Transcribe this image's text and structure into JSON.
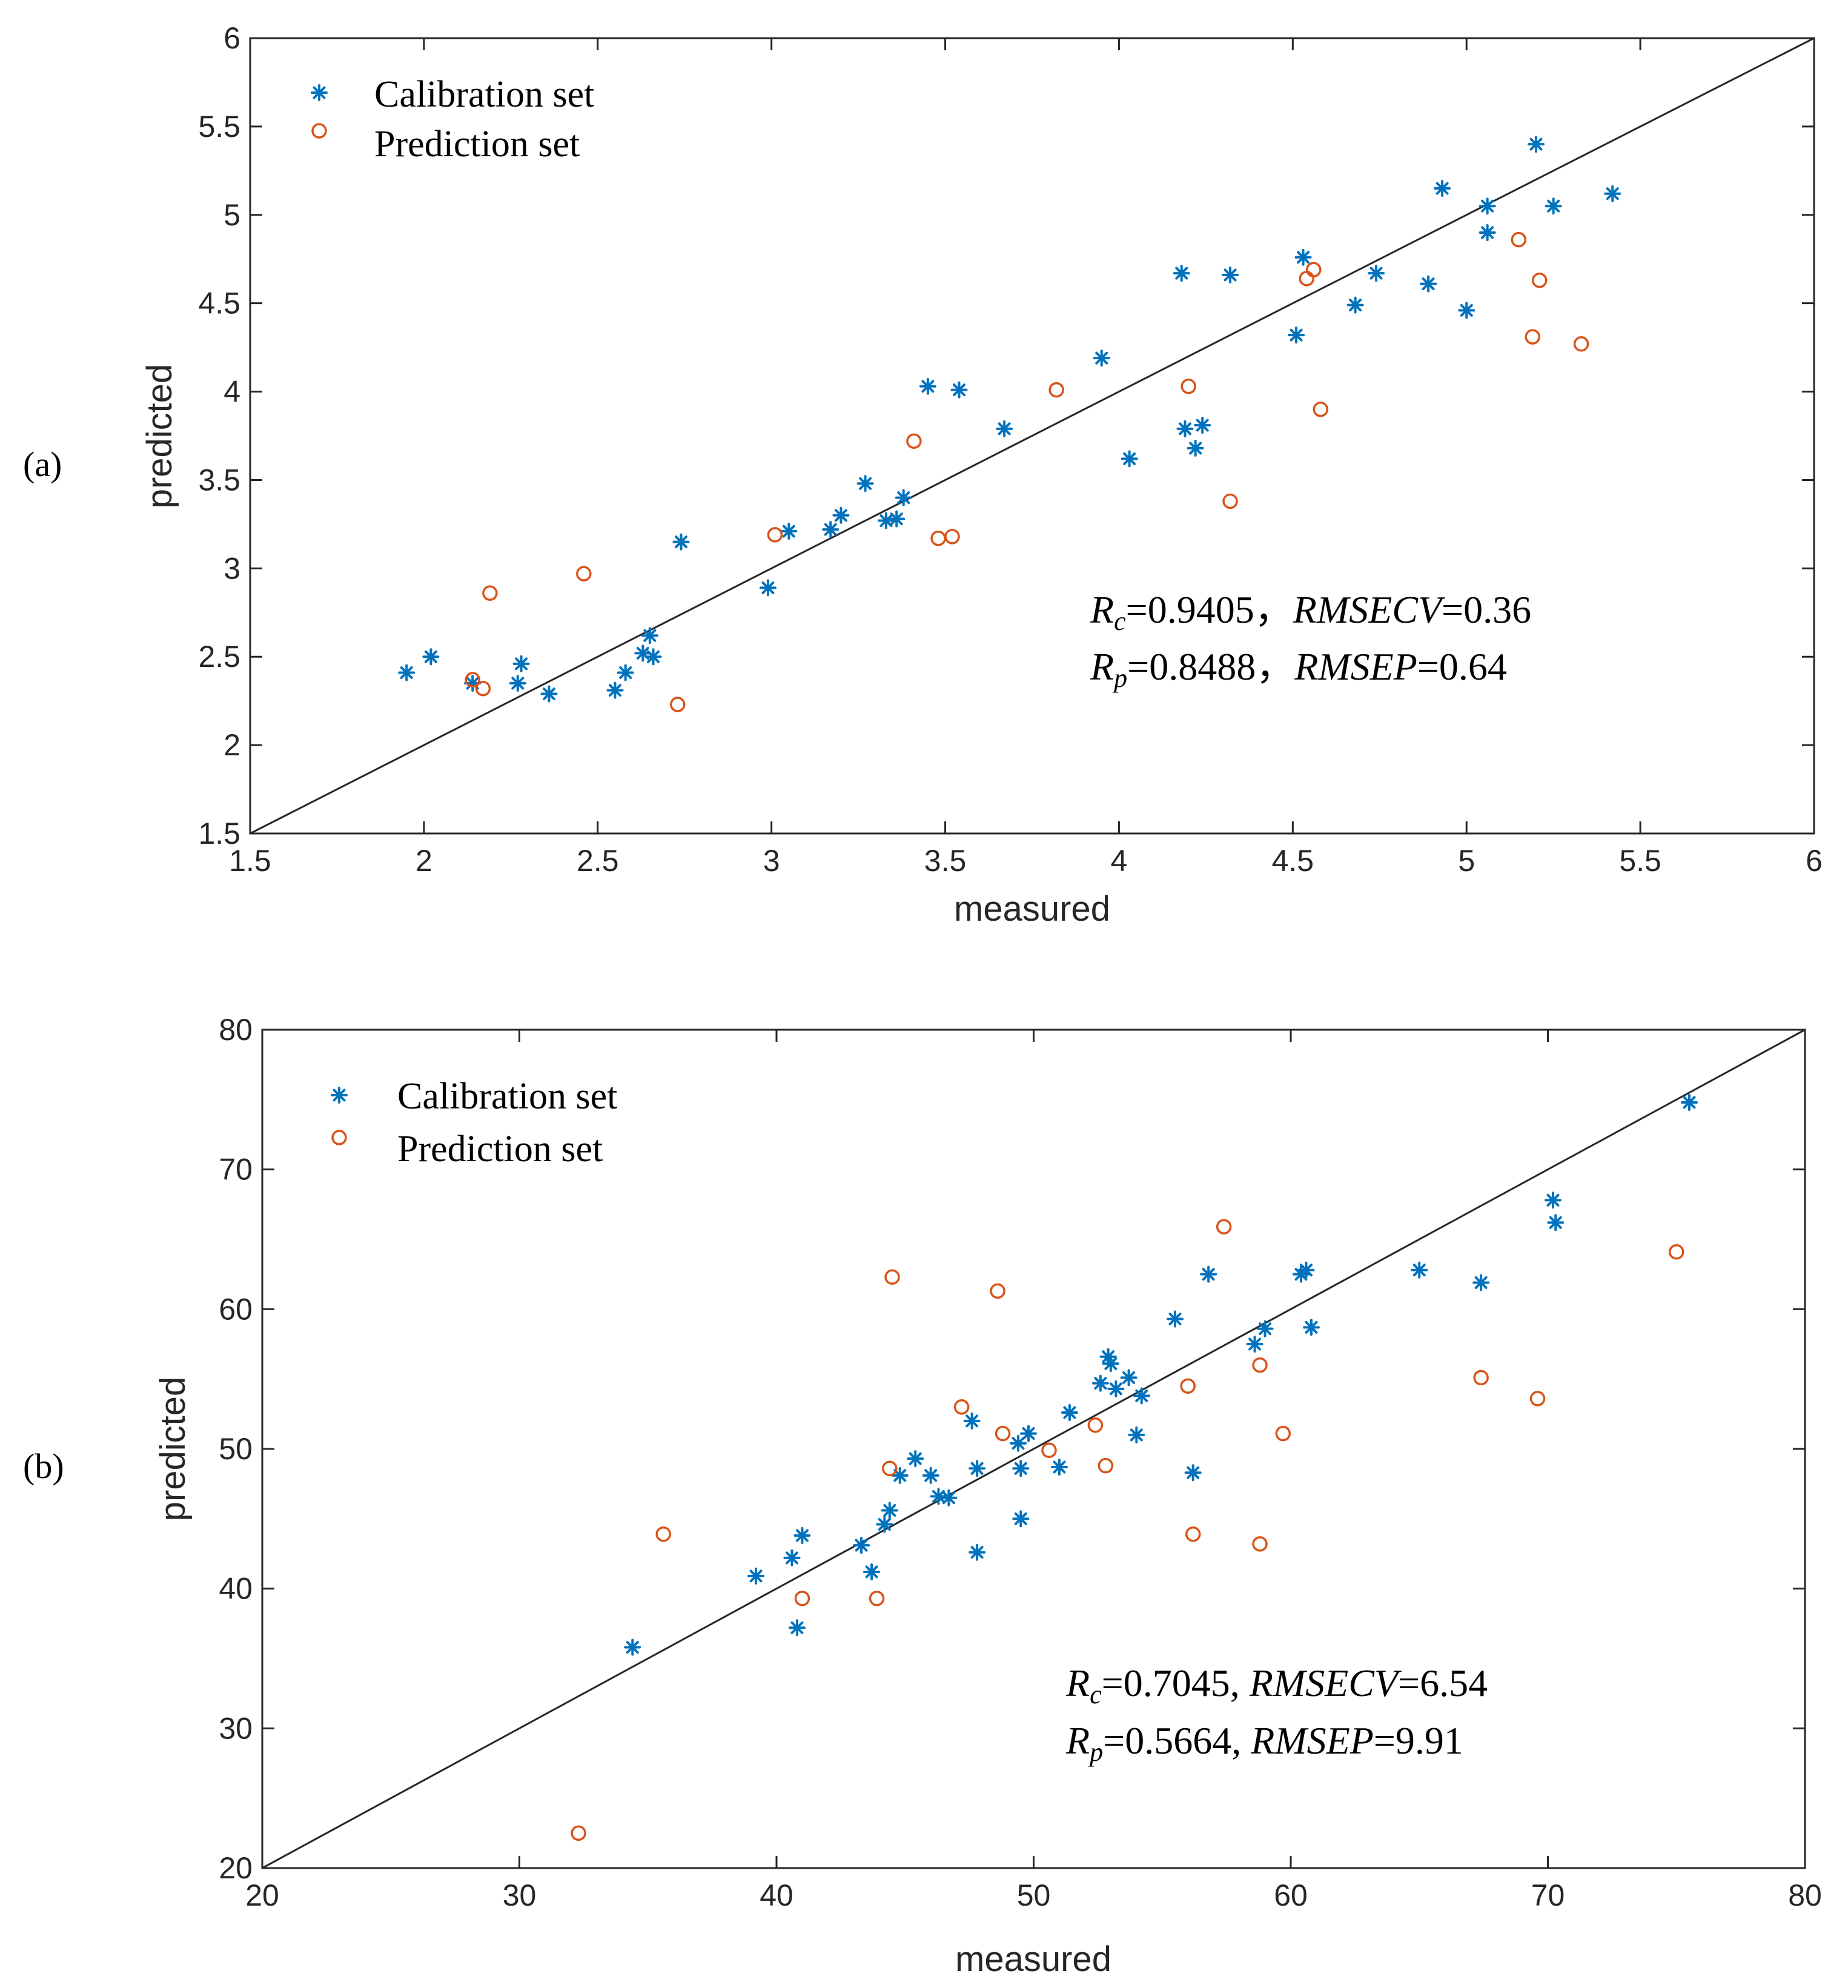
{
  "chart_data": [
    {
      "type": "scatter",
      "panel_label": "(a)",
      "xlabel": "measured",
      "ylabel": "predicted",
      "xlim": [
        1.5,
        6
      ],
      "ylim": [
        1.5,
        6
      ],
      "xticks": [
        "1.5",
        "2",
        "2.5",
        "3",
        "3.5",
        "4",
        "4.5",
        "5",
        "5.5",
        "6"
      ],
      "yticks": [
        "1.5",
        "2",
        "2.5",
        "3",
        "3.5",
        "4",
        "4.5",
        "5",
        "5.5",
        "6"
      ],
      "legend": {
        "position": "top-left",
        "entries": [
          "Calibration set",
          "Prediction set"
        ]
      },
      "reference_line": "y = x",
      "grid": false,
      "annotation": {
        "line1": {
          "rc_sym": "R",
          "rc_sub": "c",
          "rc_val": "=0.9405，",
          "rmse_name": "RMSECV",
          "rmse_val": "=0.36"
        },
        "line2": {
          "rp_sym": "R",
          "rp_sub": "p",
          "rp_val": "=0.8488，",
          "rmse_name": "RMSEP",
          "rmse_val": "=0.64"
        }
      },
      "series": [
        {
          "name": "Calibration set",
          "marker": "asterisk",
          "color": "#0072BD",
          "points": [
            [
              1.95,
              2.41
            ],
            [
              2.02,
              2.5
            ],
            [
              2.14,
              2.35
            ],
            [
              2.27,
              2.35
            ],
            [
              2.28,
              2.46
            ],
            [
              2.36,
              2.29
            ],
            [
              2.55,
              2.31
            ],
            [
              2.58,
              2.41
            ],
            [
              2.63,
              2.52
            ],
            [
              2.65,
              2.62
            ],
            [
              2.66,
              2.5
            ],
            [
              2.74,
              3.15
            ],
            [
              2.99,
              2.89
            ],
            [
              3.05,
              3.21
            ],
            [
              3.17,
              3.22
            ],
            [
              3.2,
              3.3
            ],
            [
              3.27,
              3.48
            ],
            [
              3.33,
              3.27
            ],
            [
              3.36,
              3.28
            ],
            [
              3.38,
              3.4
            ],
            [
              3.45,
              4.03
            ],
            [
              3.54,
              4.01
            ],
            [
              3.67,
              3.79
            ],
            [
              3.95,
              4.19
            ],
            [
              4.03,
              3.62
            ],
            [
              4.18,
              4.67
            ],
            [
              4.19,
              3.79
            ],
            [
              4.22,
              3.68
            ],
            [
              4.24,
              3.81
            ],
            [
              4.32,
              4.66
            ],
            [
              4.51,
              4.32
            ],
            [
              4.53,
              4.76
            ],
            [
              4.68,
              4.49
            ],
            [
              4.74,
              4.67
            ],
            [
              4.89,
              4.61
            ],
            [
              4.93,
              5.15
            ],
            [
              5.0,
              4.46
            ],
            [
              5.06,
              4.9
            ],
            [
              5.06,
              5.05
            ],
            [
              5.2,
              5.4
            ],
            [
              5.25,
              5.05
            ],
            [
              5.42,
              5.12
            ]
          ]
        },
        {
          "name": "Prediction set",
          "marker": "circle",
          "color": "#D95319",
          "points": [
            [
              2.14,
              2.37
            ],
            [
              2.17,
              2.32
            ],
            [
              2.19,
              2.86
            ],
            [
              2.46,
              2.97
            ],
            [
              2.73,
              2.23
            ],
            [
              3.01,
              3.19
            ],
            [
              3.41,
              3.72
            ],
            [
              3.48,
              3.17
            ],
            [
              3.52,
              3.18
            ],
            [
              3.82,
              4.01
            ],
            [
              4.2,
              4.03
            ],
            [
              4.32,
              3.38
            ],
            [
              4.54,
              4.64
            ],
            [
              4.56,
              4.69
            ],
            [
              4.58,
              3.9
            ],
            [
              5.15,
              4.86
            ],
            [
              5.19,
              4.31
            ],
            [
              5.21,
              4.63
            ],
            [
              5.33,
              4.27
            ]
          ]
        }
      ]
    },
    {
      "type": "scatter",
      "panel_label": "(b)",
      "xlabel": "measured",
      "ylabel": "predicted",
      "xlim": [
        20,
        80
      ],
      "ylim": [
        20,
        80
      ],
      "xticks": [
        "20",
        "30",
        "40",
        "50",
        "60",
        "70",
        "80"
      ],
      "yticks": [
        "20",
        "30",
        "40",
        "50",
        "60",
        "70",
        "80"
      ],
      "legend": {
        "position": "top-left",
        "entries": [
          "Calibration set",
          "Prediction set"
        ]
      },
      "reference_line": "y = x",
      "grid": false,
      "annotation": {
        "line1": {
          "rc_sym": "R",
          "rc_sub": "c",
          "rc_val": "=0.7045, ",
          "rmse_name": "RMSECV",
          "rmse_val": "=6.54"
        },
        "line2": {
          "rp_sym": "R",
          "rp_sub": "p",
          "rp_val": "=0.5664, ",
          "rmse_name": "RMSEP",
          "rmse_val": "=9.91"
        }
      },
      "series": [
        {
          "name": "Calibration set",
          "marker": "asterisk",
          "color": "#0072BD",
          "points": [
            [
              34.4,
              35.8
            ],
            [
              39.2,
              40.9
            ],
            [
              40.6,
              42.2
            ],
            [
              40.8,
              37.2
            ],
            [
              41.0,
              43.8
            ],
            [
              43.3,
              43.1
            ],
            [
              43.7,
              41.2
            ],
            [
              44.2,
              44.6
            ],
            [
              44.4,
              45.6
            ],
            [
              44.8,
              48.1
            ],
            [
              45.4,
              49.3
            ],
            [
              46.0,
              48.1
            ],
            [
              46.3,
              46.6
            ],
            [
              46.7,
              46.5
            ],
            [
              47.6,
              52.0
            ],
            [
              47.8,
              42.6
            ],
            [
              47.8,
              48.6
            ],
            [
              49.4,
              50.4
            ],
            [
              49.5,
              48.6
            ],
            [
              49.5,
              45.0
            ],
            [
              49.8,
              51.1
            ],
            [
              51.0,
              48.7
            ],
            [
              51.4,
              52.6
            ],
            [
              52.6,
              54.7
            ],
            [
              52.9,
              56.6
            ],
            [
              53.0,
              56.1
            ],
            [
              53.2,
              54.3
            ],
            [
              53.7,
              55.1
            ],
            [
              54.0,
              51.0
            ],
            [
              54.2,
              53.8
            ],
            [
              55.5,
              59.3
            ],
            [
              56.2,
              48.3
            ],
            [
              56.8,
              62.5
            ],
            [
              58.6,
              57.5
            ],
            [
              59.0,
              58.6
            ],
            [
              60.4,
              62.5
            ],
            [
              60.6,
              62.8
            ],
            [
              60.8,
              58.7
            ],
            [
              65.0,
              62.8
            ],
            [
              67.4,
              61.9
            ],
            [
              70.2,
              67.8
            ],
            [
              70.3,
              66.2
            ],
            [
              75.5,
              74.8
            ]
          ]
        },
        {
          "name": "Prediction set",
          "marker": "circle",
          "color": "#D95319",
          "points": [
            [
              32.3,
              22.5
            ],
            [
              35.6,
              43.9
            ],
            [
              41.0,
              39.3
            ],
            [
              43.9,
              39.3
            ],
            [
              44.4,
              48.6
            ],
            [
              44.5,
              62.3
            ],
            [
              47.2,
              53.0
            ],
            [
              48.6,
              61.3
            ],
            [
              48.8,
              51.1
            ],
            [
              50.6,
              49.9
            ],
            [
              52.4,
              51.7
            ],
            [
              52.8,
              48.8
            ],
            [
              56.0,
              54.5
            ],
            [
              56.2,
              43.9
            ],
            [
              57.4,
              65.9
            ],
            [
              58.8,
              56.0
            ],
            [
              58.8,
              43.2
            ],
            [
              59.7,
              51.1
            ],
            [
              67.4,
              55.1
            ],
            [
              69.6,
              53.6
            ],
            [
              75.0,
              64.1
            ]
          ]
        }
      ]
    }
  ]
}
